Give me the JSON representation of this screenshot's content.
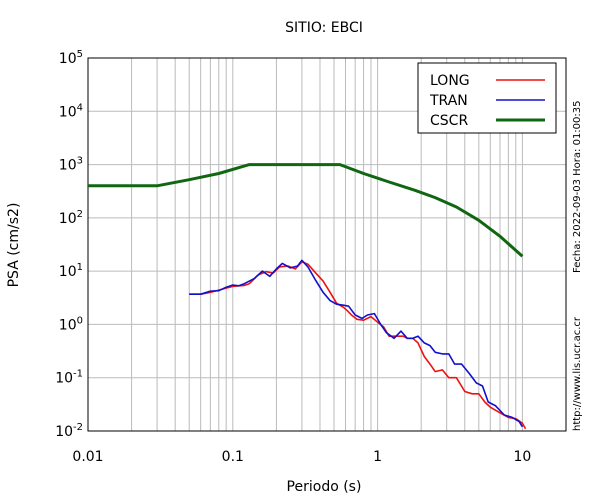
{
  "chart_data": {
    "type": "line",
    "title": "SITIO: EBCI",
    "xlabel": "Periodo (s)",
    "ylabel": "PSA (cm/s2)",
    "x_scale": "log",
    "y_scale": "log",
    "xlim": [
      0.01,
      20
    ],
    "ylim": [
      0.01,
      100000
    ],
    "x_tick_labels": [
      "0.01",
      "0.1",
      "1",
      "10"
    ],
    "y_tick_labels": [
      {
        "base": "10",
        "exp": "-2"
      },
      {
        "base": "10",
        "exp": "-1"
      },
      {
        "base": "10",
        "exp": "0"
      },
      {
        "base": "10",
        "exp": "1"
      },
      {
        "base": "10",
        "exp": "2"
      },
      {
        "base": "10",
        "exp": "3"
      },
      {
        "base": "10",
        "exp": "4"
      },
      {
        "base": "10",
        "exp": "5"
      }
    ],
    "grid": true,
    "legend_position": "top-right",
    "series": [
      {
        "name": "LONG",
        "color": "#ee1111",
        "points": [
          [
            0.05,
            3.7
          ],
          [
            0.06,
            3.7
          ],
          [
            0.07,
            4.0
          ],
          [
            0.08,
            4.4
          ],
          [
            0.09,
            4.8
          ],
          [
            0.1,
            5.2
          ],
          [
            0.12,
            5.4
          ],
          [
            0.13,
            5.8
          ],
          [
            0.15,
            8.5
          ],
          [
            0.17,
            9.8
          ],
          [
            0.19,
            9.2
          ],
          [
            0.21,
            12.0
          ],
          [
            0.24,
            12.5
          ],
          [
            0.27,
            11.0
          ],
          [
            0.3,
            15.0
          ],
          [
            0.33,
            13.5
          ],
          [
            0.37,
            9.5
          ],
          [
            0.42,
            6.5
          ],
          [
            0.47,
            4.0
          ],
          [
            0.52,
            2.5
          ],
          [
            0.58,
            2.1
          ],
          [
            0.62,
            1.8
          ],
          [
            0.66,
            1.5
          ],
          [
            0.72,
            1.25
          ],
          [
            0.8,
            1.2
          ],
          [
            0.9,
            1.4
          ],
          [
            1.0,
            1.1
          ],
          [
            1.1,
            0.9
          ],
          [
            1.2,
            0.6
          ],
          [
            1.35,
            0.6
          ],
          [
            1.5,
            0.6
          ],
          [
            1.6,
            0.55
          ],
          [
            1.75,
            0.55
          ],
          [
            1.9,
            0.45
          ],
          [
            2.1,
            0.25
          ],
          [
            2.3,
            0.18
          ],
          [
            2.5,
            0.13
          ],
          [
            2.8,
            0.14
          ],
          [
            3.1,
            0.1
          ],
          [
            3.5,
            0.1
          ],
          [
            4.0,
            0.055
          ],
          [
            4.5,
            0.05
          ],
          [
            5.0,
            0.05
          ],
          [
            5.5,
            0.035
          ],
          [
            6.0,
            0.028
          ],
          [
            7.0,
            0.022
          ],
          [
            8.0,
            0.018
          ],
          [
            9.0,
            0.017
          ],
          [
            10.0,
            0.014
          ],
          [
            10.5,
            0.011
          ]
        ]
      },
      {
        "name": "TRAN",
        "color": "#1111cc",
        "points": [
          [
            0.05,
            3.7
          ],
          [
            0.06,
            3.7
          ],
          [
            0.07,
            4.2
          ],
          [
            0.08,
            4.3
          ],
          [
            0.09,
            5.0
          ],
          [
            0.1,
            5.5
          ],
          [
            0.11,
            5.3
          ],
          [
            0.12,
            5.8
          ],
          [
            0.14,
            7.2
          ],
          [
            0.16,
            10.0
          ],
          [
            0.18,
            8.0
          ],
          [
            0.2,
            11.0
          ],
          [
            0.22,
            14.0
          ],
          [
            0.25,
            11.5
          ],
          [
            0.28,
            12.5
          ],
          [
            0.3,
            16.0
          ],
          [
            0.33,
            12.0
          ],
          [
            0.37,
            7.0
          ],
          [
            0.42,
            4.0
          ],
          [
            0.47,
            2.8
          ],
          [
            0.52,
            2.4
          ],
          [
            0.58,
            2.3
          ],
          [
            0.63,
            2.2
          ],
          [
            0.7,
            1.5
          ],
          [
            0.78,
            1.3
          ],
          [
            0.85,
            1.5
          ],
          [
            0.95,
            1.6
          ],
          [
            1.05,
            1.0
          ],
          [
            1.15,
            0.7
          ],
          [
            1.3,
            0.55
          ],
          [
            1.45,
            0.75
          ],
          [
            1.6,
            0.55
          ],
          [
            1.75,
            0.55
          ],
          [
            1.9,
            0.6
          ],
          [
            2.1,
            0.45
          ],
          [
            2.3,
            0.4
          ],
          [
            2.5,
            0.3
          ],
          [
            2.8,
            0.28
          ],
          [
            3.1,
            0.28
          ],
          [
            3.4,
            0.18
          ],
          [
            3.8,
            0.18
          ],
          [
            4.3,
            0.12
          ],
          [
            4.8,
            0.08
          ],
          [
            5.3,
            0.07
          ],
          [
            5.8,
            0.035
          ],
          [
            6.5,
            0.03
          ],
          [
            7.5,
            0.02
          ],
          [
            8.5,
            0.018
          ],
          [
            9.5,
            0.015
          ],
          [
            10.0,
            0.012
          ]
        ]
      },
      {
        "name": "CSCR",
        "color": "#116611",
        "points": [
          [
            0.01,
            400
          ],
          [
            0.03,
            400
          ],
          [
            0.05,
            520
          ],
          [
            0.08,
            680
          ],
          [
            0.13,
            1000
          ],
          [
            0.55,
            1000
          ],
          [
            0.8,
            680
          ],
          [
            1.2,
            470
          ],
          [
            1.8,
            330
          ],
          [
            2.5,
            240
          ],
          [
            3.5,
            160
          ],
          [
            5.0,
            90
          ],
          [
            7.0,
            45
          ],
          [
            10.0,
            19
          ]
        ]
      }
    ]
  },
  "side_labels": {
    "timestamp": "Fecha: 2022-09-03 Hora: 01:00:35",
    "url": "http://www.lis.ucr.ac.cr"
  }
}
